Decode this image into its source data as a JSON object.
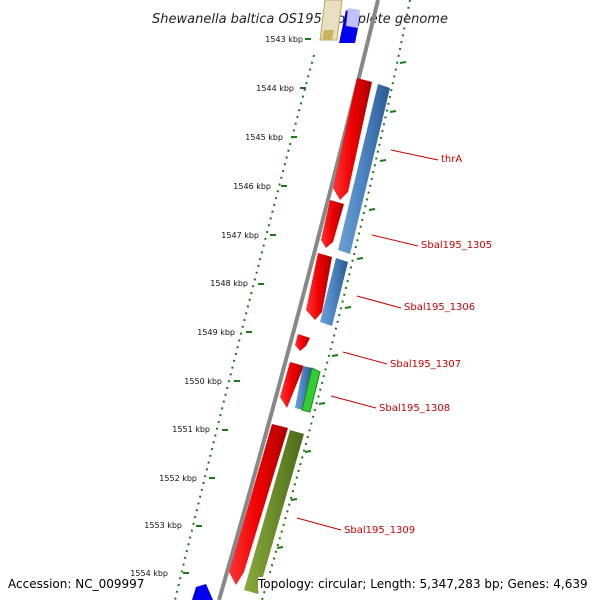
{
  "title": "Shewanella baltica OS195, complete genome",
  "ticks": [
    "1543 kbp",
    "1544 kbp",
    "1545 kbp",
    "1546 kbp",
    "1547 kbp",
    "1548 kbp",
    "1549 kbp",
    "1550 kbp",
    "1551 kbp",
    "1552 kbp",
    "1553 kbp",
    "1554 kbp"
  ],
  "genes": [
    "thrA",
    "Sbal195_1305",
    "Sbal195_1306",
    "Sbal195_1307",
    "Sbal195_1308",
    "Sbal195_1309"
  ],
  "footer": {
    "accession": "Accession: NC_009997",
    "summary": "Topology: circular; Length: 5,347,283 bp; Genes: 4,639"
  },
  "colors": {
    "forward_cds": "#ff0000",
    "blue_feature": "#4a82c0",
    "olive_feature": "#6b8c2a",
    "green_feature": "#33cc33",
    "backbone": "#888888",
    "tick": "#1a7a1a",
    "label": "#cc0000"
  }
}
